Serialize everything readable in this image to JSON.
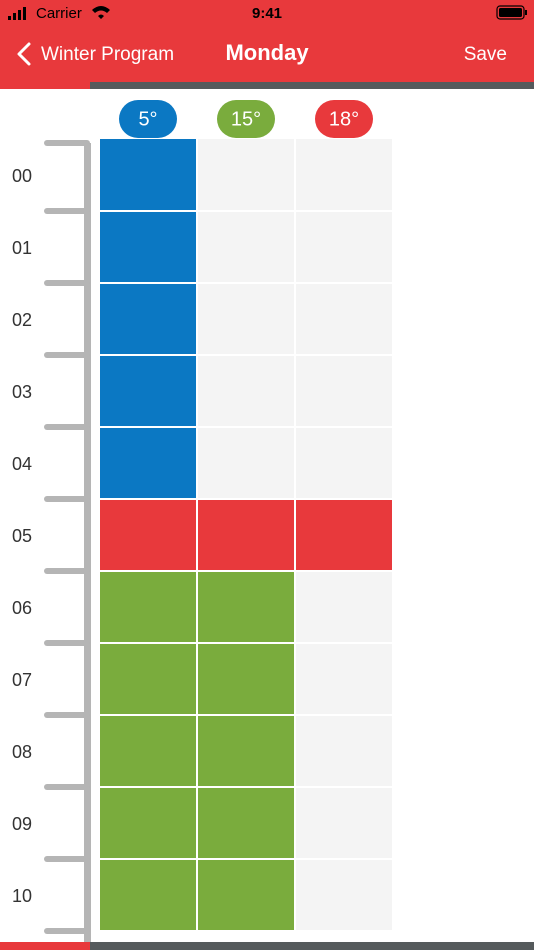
{
  "status_bar": {
    "carrier": "Carrier",
    "time": "9:41"
  },
  "nav": {
    "back": "Winter Program",
    "title": "Monday",
    "action": "Save"
  },
  "temperatures": [
    {
      "label": "5°",
      "color": "#0b78c3"
    },
    {
      "label": "15°",
      "color": "#7aac3d"
    },
    {
      "label": "18°",
      "color": "#e8393c"
    }
  ],
  "hours": [
    {
      "label": "00",
      "level": 0
    },
    {
      "label": "01",
      "level": 0
    },
    {
      "label": "02",
      "level": 0
    },
    {
      "label": "03",
      "level": 0
    },
    {
      "label": "04",
      "level": 0
    },
    {
      "label": "05",
      "level": 2
    },
    {
      "label": "06",
      "level": 1
    },
    {
      "label": "07",
      "level": 1
    },
    {
      "label": "08",
      "level": 1
    },
    {
      "label": "09",
      "level": 1
    },
    {
      "label": "10",
      "level": 1
    }
  ]
}
